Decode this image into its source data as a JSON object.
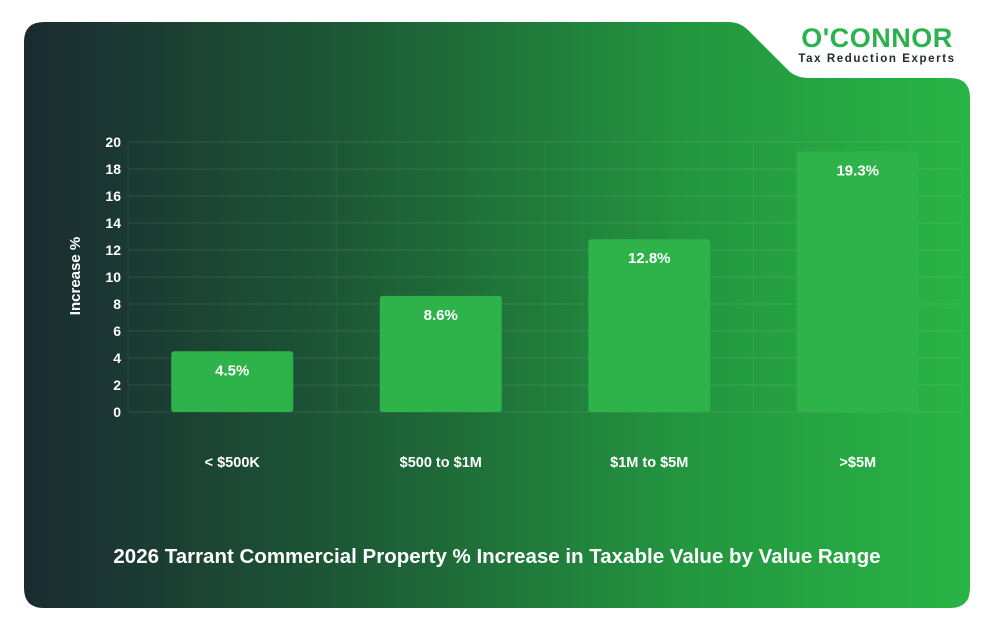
{
  "brand": {
    "name": "O'CONNOR",
    "tagline": "Tax Reduction Experts",
    "accent": "#2bb24c"
  },
  "caption": "2026 Tarrant Commercial Property % Increase in Taxable Value by Value Range",
  "colors": {
    "bar": "#2db34a",
    "bg_dark": "#1a2b31",
    "bg_light": "#27b347"
  },
  "chart_data": {
    "type": "bar",
    "categories": [
      "< $500K",
      "$500 to $1M",
      "$1M to $5M",
      ">$5M"
    ],
    "values": [
      4.5,
      8.6,
      12.8,
      19.3
    ],
    "data_labels": [
      "4.5%",
      "8.6%",
      "12.8%",
      "19.3%"
    ],
    "ylabel": "Increase %",
    "xlabel": "",
    "ylim": [
      0,
      20
    ],
    "yticks": [
      0,
      2,
      4,
      6,
      8,
      10,
      12,
      14,
      16,
      18,
      20
    ],
    "grid": true,
    "legend": "none"
  }
}
